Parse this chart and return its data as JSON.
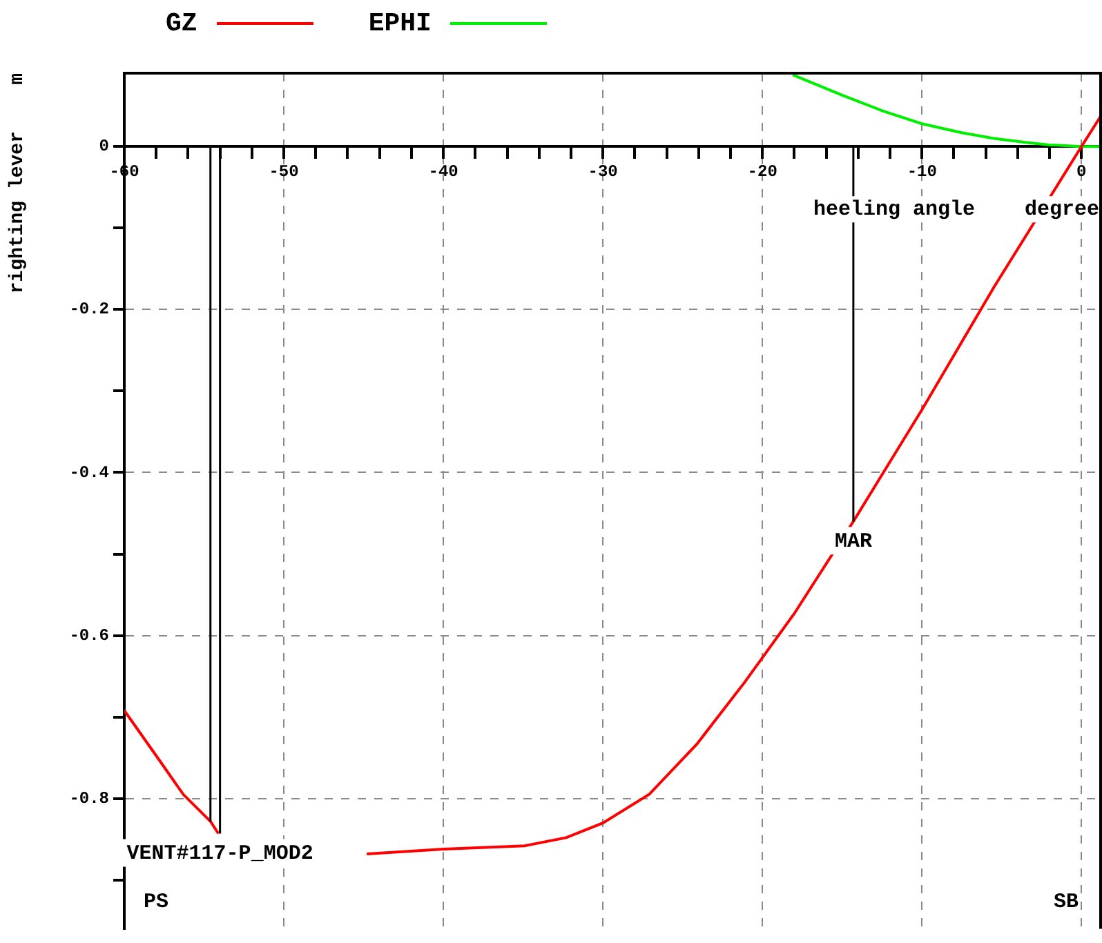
{
  "chart_data": {
    "type": "line",
    "xlabel": "heeling angle    degree",
    "ylabel": "righting lever    m",
    "xlim": [
      -60,
      1.2
    ],
    "ylim": [
      -0.96,
      0.09
    ],
    "xticks": [
      -60,
      {
        "value": -58,
        "label": null
      },
      {
        "value": -56,
        "label": null
      },
      {
        "value": -54,
        "label": null
      },
      {
        "value": -52,
        "label": null
      },
      -50,
      {
        "value": -48,
        "label": null
      },
      {
        "value": -46,
        "label": null
      },
      {
        "value": -44,
        "label": null
      },
      {
        "value": -42,
        "label": null
      },
      -40,
      {
        "value": -38,
        "label": null
      },
      {
        "value": -36,
        "label": null
      },
      {
        "value": -34,
        "label": null
      },
      {
        "value": -32,
        "label": null
      },
      -30,
      {
        "value": -28,
        "label": null
      },
      {
        "value": -26,
        "label": null
      },
      {
        "value": -24,
        "label": null
      },
      {
        "value": -22,
        "label": null
      },
      -20,
      {
        "value": -18,
        "label": null
      },
      {
        "value": -16,
        "label": null
      },
      {
        "value": -14,
        "label": null
      },
      {
        "value": -12,
        "label": null
      },
      -10,
      {
        "value": -8,
        "label": null
      },
      {
        "value": -6,
        "label": null
      },
      {
        "value": -4,
        "label": null
      },
      {
        "value": -2,
        "label": null
      },
      0
    ],
    "yticks": [
      {
        "value": -0.9,
        "label": null
      },
      -0.8,
      {
        "value": -0.7,
        "label": null
      },
      -0.6,
      {
        "value": -0.5,
        "label": null
      },
      -0.4,
      {
        "value": -0.3,
        "label": null
      },
      -0.2,
      {
        "value": -0.1,
        "label": null
      },
      0
    ],
    "series": [
      {
        "name": "GZ",
        "color": "#ff0000",
        "x": [
          -60,
          -57.8,
          -56.3,
          -54.6,
          -54.1,
          -50,
          -44.8,
          -40,
          -34.9,
          -32.3,
          -30,
          -27.1,
          -24.1,
          -21.1,
          -18,
          -14.3,
          -10,
          -5.5,
          0,
          1.2
        ],
        "values": [
          -0.692,
          -0.753,
          -0.795,
          -0.828,
          -0.843,
          null,
          -0.868,
          -0.862,
          -0.858,
          -0.848,
          -0.83,
          -0.795,
          -0.733,
          -0.657,
          -0.573,
          -0.46,
          -0.323,
          -0.173,
          0,
          0.037
        ]
      },
      {
        "name": "EPHI",
        "color": "#00ee00",
        "x": [
          -18.1,
          -15,
          -12.5,
          -10,
          -7.5,
          -5.5,
          -3.5,
          -2,
          0,
          1.2
        ],
        "values": [
          0.088,
          0.063,
          0.044,
          0.028,
          0.017,
          0.01,
          0.005,
          0.002,
          0,
          0
        ]
      }
    ],
    "ref_lines": [
      {
        "axis": "x",
        "value": -54.6
      },
      {
        "axis": "x",
        "value": -54,
        "label": "VENT#117-P_MOD2"
      },
      {
        "axis": "x",
        "value": -14.3,
        "label": "MAR"
      }
    ],
    "annotations": [
      "PS",
      "SB"
    ],
    "grid": true,
    "legend": "top left",
    "marker": "none",
    "line_style": "solid"
  }
}
